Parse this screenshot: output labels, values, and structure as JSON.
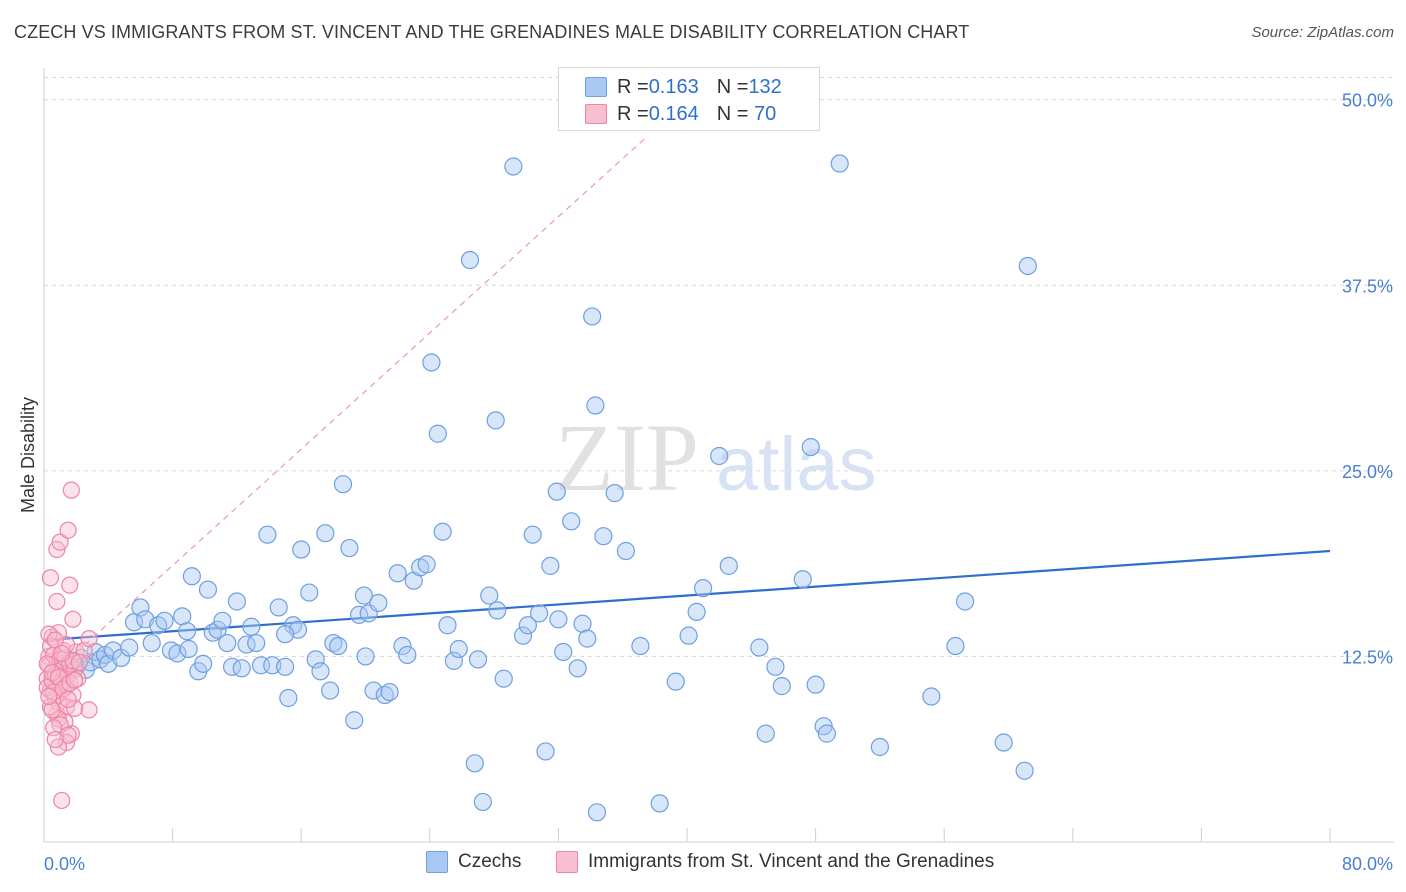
{
  "header": {
    "title": "CZECH VS IMMIGRANTS FROM ST. VINCENT AND THE GRENADINES MALE DISABILITY CORRELATION CHART",
    "source": "Source: ZipAtlas.com"
  },
  "watermark": {
    "zip": "ZIP",
    "atlas": "atlas"
  },
  "legend": {
    "rows": [
      {
        "r_label": "R = ",
        "r_value": "0.163",
        "n_label": "N = ",
        "n_value": "132",
        "color": "#a9c8f2",
        "edge": "#6f9fe0"
      },
      {
        "r_label": "R = ",
        "r_value": "0.164",
        "n_label": "N = ",
        "n_value": " 70",
        "color": "#f8bfd0",
        "edge": "#ec85a6"
      }
    ]
  },
  "bottom_legend": {
    "items": [
      {
        "label": "Czechs",
        "color": "#a9c8f2",
        "edge": "#6f9fe0"
      },
      {
        "label": "Immigrants from St. Vincent and the Grenadines",
        "color": "#f8bfd0",
        "edge": "#ec85a6"
      }
    ]
  },
  "chart_data": {
    "type": "scatter",
    "title": "CZECH VS IMMIGRANTS FROM ST. VINCENT AND THE GRENADINES MALE DISABILITY CORRELATION CHART",
    "ylabel": "Male Disability",
    "xlabel": "",
    "xlim": [
      0,
      80
    ],
    "ylim": [
      0,
      52
    ],
    "x_tick_labels": [
      {
        "value": 0,
        "label": "0.0%"
      },
      {
        "value": 80,
        "label": "80.0%"
      }
    ],
    "y_tick_labels": [
      {
        "value": 12.5,
        "label": "12.5%"
      },
      {
        "value": 25,
        "label": "25.0%"
      },
      {
        "value": 37.5,
        "label": "37.5%"
      },
      {
        "value": 50,
        "label": "50.0%"
      }
    ],
    "grid": "horizontal dashed",
    "legend_position": "top-center",
    "series": [
      {
        "name": "Czechs",
        "color": "#6f9fe0",
        "fill": "#a9c8f2",
        "trend": {
          "x0": 0,
          "y0": 13.6,
          "x1": 80,
          "y1": 19.6,
          "style": "solid",
          "color": "#2e6fcd"
        },
        "points": [
          [
            1.2,
            12.0
          ],
          [
            1.5,
            11.5
          ],
          [
            1.8,
            12.2
          ],
          [
            2.0,
            11.8
          ],
          [
            2.3,
            12.4
          ],
          [
            2.6,
            11.6
          ],
          [
            2.9,
            12.1
          ],
          [
            3.2,
            12.8
          ],
          [
            3.5,
            12.3
          ],
          [
            3.8,
            12.6
          ],
          [
            4.0,
            12.0
          ],
          [
            4.3,
            12.9
          ],
          [
            4.8,
            12.4
          ],
          [
            5.3,
            13.1
          ],
          [
            5.6,
            14.8
          ],
          [
            6.0,
            15.8
          ],
          [
            6.3,
            15.0
          ],
          [
            6.7,
            13.4
          ],
          [
            7.1,
            14.6
          ],
          [
            7.5,
            14.9
          ],
          [
            7.9,
            12.9
          ],
          [
            8.3,
            12.7
          ],
          [
            8.6,
            15.2
          ],
          [
            8.9,
            14.2
          ],
          [
            9.2,
            17.9
          ],
          [
            9.6,
            11.5
          ],
          [
            9.9,
            12.0
          ],
          [
            10.2,
            17.0
          ],
          [
            10.5,
            14.1
          ],
          [
            10.8,
            14.3
          ],
          [
            11.1,
            14.9
          ],
          [
            11.4,
            13.4
          ],
          [
            11.7,
            11.8
          ],
          [
            12.0,
            16.2
          ],
          [
            12.3,
            11.7
          ],
          [
            12.6,
            13.3
          ],
          [
            12.9,
            14.5
          ],
          [
            13.2,
            13.4
          ],
          [
            13.5,
            11.9
          ],
          [
            13.9,
            20.7
          ],
          [
            14.2,
            11.9
          ],
          [
            14.6,
            15.8
          ],
          [
            15.0,
            11.8
          ],
          [
            15.2,
            9.7
          ],
          [
            15.5,
            14.6
          ],
          [
            15.8,
            14.3
          ],
          [
            16.0,
            19.7
          ],
          [
            16.5,
            16.8
          ],
          [
            16.9,
            12.3
          ],
          [
            17.2,
            11.5
          ],
          [
            17.5,
            20.8
          ],
          [
            17.8,
            10.2
          ],
          [
            18.0,
            13.4
          ],
          [
            18.3,
            13.2
          ],
          [
            18.6,
            24.1
          ],
          [
            19.0,
            19.8
          ],
          [
            19.3,
            8.2
          ],
          [
            19.6,
            15.3
          ],
          [
            19.9,
            16.6
          ],
          [
            20.2,
            15.4
          ],
          [
            20.5,
            10.2
          ],
          [
            20.8,
            16.1
          ],
          [
            21.2,
            9.9
          ],
          [
            21.5,
            10.1
          ],
          [
            22.0,
            18.1
          ],
          [
            22.3,
            13.2
          ],
          [
            22.6,
            12.6
          ],
          [
            23.0,
            17.6
          ],
          [
            23.4,
            18.5
          ],
          [
            23.8,
            18.7
          ],
          [
            24.1,
            32.3
          ],
          [
            24.5,
            27.5
          ],
          [
            24.8,
            20.9
          ],
          [
            25.1,
            14.6
          ],
          [
            25.5,
            12.2
          ],
          [
            25.8,
            13.0
          ],
          [
            26.5,
            39.2
          ],
          [
            26.8,
            5.3
          ],
          [
            27.3,
            2.7
          ],
          [
            27.7,
            16.6
          ],
          [
            28.1,
            28.4
          ],
          [
            28.2,
            15.6
          ],
          [
            28.6,
            11.0
          ],
          [
            29.2,
            45.5
          ],
          [
            29.8,
            13.9
          ],
          [
            30.1,
            14.6
          ],
          [
            30.4,
            20.7
          ],
          [
            30.8,
            15.4
          ],
          [
            31.2,
            6.1
          ],
          [
            31.5,
            18.6
          ],
          [
            31.9,
            23.6
          ],
          [
            32.3,
            12.8
          ],
          [
            32.8,
            21.6
          ],
          [
            33.2,
            11.7
          ],
          [
            33.5,
            14.7
          ],
          [
            33.8,
            13.7
          ],
          [
            34.1,
            35.4
          ],
          [
            34.3,
            29.4
          ],
          [
            34.4,
            2.0
          ],
          [
            34.8,
            20.6
          ],
          [
            35.5,
            23.5
          ],
          [
            36.2,
            19.6
          ],
          [
            37.1,
            13.2
          ],
          [
            38.3,
            2.6
          ],
          [
            39.3,
            10.8
          ],
          [
            40.1,
            13.9
          ],
          [
            40.6,
            15.5
          ],
          [
            41.0,
            17.1
          ],
          [
            42.0,
            26.0
          ],
          [
            42.6,
            18.6
          ],
          [
            44.5,
            13.1
          ],
          [
            44.9,
            7.3
          ],
          [
            45.5,
            11.8
          ],
          [
            45.9,
            10.5
          ],
          [
            47.2,
            17.7
          ],
          [
            47.7,
            26.6
          ],
          [
            48.0,
            10.6
          ],
          [
            48.5,
            7.8
          ],
          [
            48.7,
            7.3
          ],
          [
            49.5,
            45.7
          ],
          [
            52.0,
            6.4
          ],
          [
            55.2,
            9.8
          ],
          [
            56.7,
            13.2
          ],
          [
            57.3,
            16.2
          ],
          [
            59.7,
            6.7
          ],
          [
            61.0,
            4.8
          ],
          [
            61.2,
            38.8
          ],
          [
            32.0,
            15.0
          ],
          [
            20.0,
            12.5
          ],
          [
            9.0,
            13.0
          ],
          [
            15.0,
            14.0
          ],
          [
            27.0,
            12.3
          ]
        ]
      },
      {
        "name": "Immigrants from St. Vincent and the Grenadines",
        "color": "#ec85a6",
        "fill": "#f8bfd0",
        "trend": {
          "x0": 0,
          "y0": 10.8,
          "x1": 37.5,
          "y1": 47.5,
          "style": "dashed",
          "color": "#e79ab3"
        },
        "points": [
          [
            0.2,
            11.0
          ],
          [
            0.3,
            12.5
          ],
          [
            0.4,
            10.2
          ],
          [
            0.5,
            13.8
          ],
          [
            0.6,
            11.6
          ],
          [
            0.7,
            9.7
          ],
          [
            0.8,
            12.1
          ],
          [
            0.9,
            14.1
          ],
          [
            1.0,
            10.6
          ],
          [
            1.1,
            11.4
          ],
          [
            1.2,
            12.9
          ],
          [
            0.2,
            10.4
          ],
          [
            0.3,
            11.9
          ],
          [
            0.4,
            13.2
          ],
          [
            0.5,
            10.9
          ],
          [
            0.6,
            12.6
          ],
          [
            0.7,
            11.3
          ],
          [
            0.8,
            8.6
          ],
          [
            0.9,
            9.4
          ],
          [
            1.0,
            12.3
          ],
          [
            1.1,
            10.8
          ],
          [
            1.2,
            11.7
          ],
          [
            1.3,
            12.4
          ],
          [
            1.4,
            10.5
          ],
          [
            1.5,
            11.2
          ],
          [
            1.6,
            12.0
          ],
          [
            1.7,
            7.3
          ],
          [
            1.8,
            9.9
          ],
          [
            1.9,
            11.6
          ],
          [
            2.0,
            12.8
          ],
          [
            0.4,
            17.8
          ],
          [
            0.8,
            16.2
          ],
          [
            0.8,
            19.7
          ],
          [
            1.0,
            20.2
          ],
          [
            1.5,
            21.0
          ],
          [
            1.6,
            17.3
          ],
          [
            1.7,
            23.7
          ],
          [
            1.8,
            15.0
          ],
          [
            1.3,
            8.1
          ],
          [
            1.4,
            9.1
          ],
          [
            0.9,
            8.3
          ],
          [
            1.0,
            7.9
          ],
          [
            1.4,
            6.7
          ],
          [
            1.5,
            7.2
          ],
          [
            0.9,
            6.4
          ],
          [
            1.1,
            2.8
          ],
          [
            2.5,
            12.9
          ],
          [
            2.8,
            13.7
          ],
          [
            2.8,
            8.9
          ],
          [
            1.9,
            9.0
          ],
          [
            0.3,
            14.0
          ],
          [
            0.4,
            9.1
          ],
          [
            0.5,
            8.9
          ],
          [
            0.6,
            7.7
          ],
          [
            0.7,
            6.9
          ],
          [
            0.2,
            12.0
          ],
          [
            0.5,
            11.4
          ],
          [
            0.6,
            10.1
          ],
          [
            0.9,
            11.1
          ],
          [
            1.2,
            10.3
          ],
          [
            1.4,
            13.3
          ],
          [
            1.6,
            10.7
          ],
          [
            1.8,
            12.2
          ],
          [
            2.1,
            11.0
          ],
          [
            0.3,
            9.8
          ],
          [
            0.7,
            13.6
          ],
          [
            1.1,
            12.7
          ],
          [
            1.5,
            9.6
          ],
          [
            1.9,
            10.9
          ],
          [
            2.2,
            12.1
          ]
        ]
      }
    ]
  }
}
